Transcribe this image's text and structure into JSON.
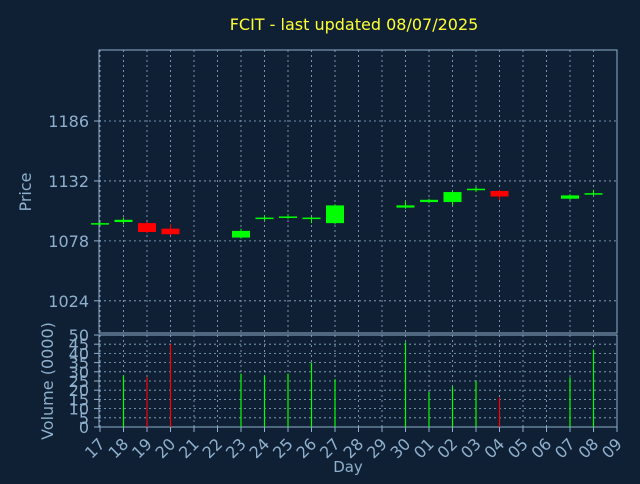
{
  "colors": {
    "background": "#0f2035",
    "frame": "#8fb0cc",
    "grid": "#8fb0cc",
    "title": "#ffff33",
    "axis_text": "#8fb0cc",
    "up": "#00ff00",
    "down": "#ff0000"
  },
  "chart_data": [
    {
      "type": "candlestick",
      "title": "FCIT - last updated 08/07/2025",
      "ylabel": "Price",
      "ylim": [
        995,
        1250
      ],
      "yticks": [
        1024,
        1078,
        1132,
        1186
      ],
      "grid": true,
      "candles": [
        {
          "day": "17",
          "open": 1093,
          "close": 1094,
          "high": 1095,
          "low": 1092
        },
        {
          "day": "18",
          "open": 1095,
          "close": 1097,
          "high": 1099,
          "low": 1093
        },
        {
          "day": "19",
          "open": 1094,
          "close": 1086,
          "high": 1095,
          "low": 1085
        },
        {
          "day": "20",
          "open": 1089,
          "close": 1084,
          "high": 1093,
          "low": 1083
        },
        {
          "day": "23",
          "open": 1081,
          "close": 1087,
          "high": 1089,
          "low": 1080
        },
        {
          "day": "24",
          "open": 1098,
          "close": 1099,
          "high": 1101,
          "low": 1096
        },
        {
          "day": "25",
          "open": 1099,
          "close": 1100,
          "high": 1102,
          "low": 1098
        },
        {
          "day": "26",
          "open": 1098,
          "close": 1099,
          "high": 1100,
          "low": 1094
        },
        {
          "day": "27",
          "open": 1094,
          "close": 1110,
          "high": 1111,
          "low": 1093
        },
        {
          "day": "30",
          "open": 1108,
          "close": 1110,
          "high": 1114,
          "low": 1107
        },
        {
          "day": "01",
          "open": 1113,
          "close": 1115,
          "high": 1116,
          "low": 1112
        },
        {
          "day": "02",
          "open": 1113,
          "close": 1122,
          "high": 1123,
          "low": 1110
        },
        {
          "day": "03",
          "open": 1124,
          "close": 1125,
          "high": 1127,
          "low": 1122
        },
        {
          "day": "04",
          "open": 1123,
          "close": 1118,
          "high": 1124,
          "low": 1115
        },
        {
          "day": "07",
          "open": 1116,
          "close": 1119,
          "high": 1120,
          "low": 1115
        },
        {
          "day": "08",
          "open": 1120,
          "close": 1121,
          "high": 1124,
          "low": 1119
        }
      ]
    },
    {
      "type": "bar",
      "xlabel": "Day",
      "ylabel": "Volume (0000)",
      "ylim": [
        0,
        50
      ],
      "yticks": [
        0,
        5,
        10,
        15,
        20,
        25,
        30,
        35,
        40,
        45,
        50
      ],
      "categories": [
        "17",
        "18",
        "19",
        "20",
        "21",
        "22",
        "23",
        "24",
        "25",
        "26",
        "27",
        "28",
        "29",
        "30",
        "01",
        "02",
        "03",
        "04",
        "05",
        "06",
        "07",
        "08",
        "09"
      ],
      "values": [
        {
          "day": "18",
          "value": 28,
          "direction": "up"
        },
        {
          "day": "19",
          "value": 27,
          "direction": "down"
        },
        {
          "day": "20",
          "value": 45,
          "direction": "down"
        },
        {
          "day": "23",
          "value": 29,
          "direction": "up"
        },
        {
          "day": "24",
          "value": 28,
          "direction": "up"
        },
        {
          "day": "25",
          "value": 29,
          "direction": "up"
        },
        {
          "day": "26",
          "value": 35,
          "direction": "up"
        },
        {
          "day": "27",
          "value": 26,
          "direction": "up"
        },
        {
          "day": "30",
          "value": 46,
          "direction": "up"
        },
        {
          "day": "01",
          "value": 19,
          "direction": "up"
        },
        {
          "day": "02",
          "value": 22,
          "direction": "up"
        },
        {
          "day": "03",
          "value": 25,
          "direction": "up"
        },
        {
          "day": "04",
          "value": 16,
          "direction": "down"
        },
        {
          "day": "07",
          "value": 27,
          "direction": "up"
        },
        {
          "day": "08",
          "value": 42,
          "direction": "up"
        }
      ]
    }
  ]
}
